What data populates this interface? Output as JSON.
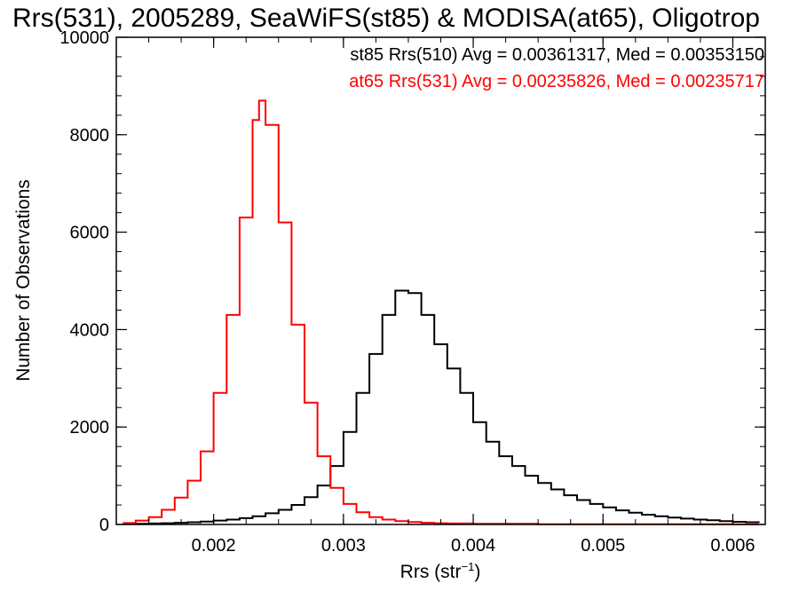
{
  "chart_data": {
    "type": "line",
    "step": true,
    "title": "Rrs(531), 2005289, SeaWiFS(st85) & MODISA(at65), Oligotrop",
    "xlabel": "Rrs (str",
    "xlabel_sup": "−1",
    "xlabel_end": ")",
    "ylabel": "Number of Observations",
    "xlim": [
      0.00125,
      0.00625
    ],
    "ylim": [
      0,
      10000
    ],
    "x_ticks": [
      0.002,
      0.003,
      0.004,
      0.005,
      0.006
    ],
    "x_tick_labels": [
      "0.002",
      "0.003",
      "0.004",
      "0.005",
      "0.006"
    ],
    "y_ticks": [
      0,
      2000,
      4000,
      6000,
      8000,
      10000
    ],
    "y_tick_labels": [
      "0",
      "2000",
      "4000",
      "6000",
      "8000",
      "10000"
    ],
    "grid": false,
    "legend_position": "top-right",
    "series": [
      {
        "name": "st85 Rrs(510) Avg = 0.00361317, Med = 0.00353150",
        "color": "#000000",
        "x": [
          0.0013,
          0.0014,
          0.0015,
          0.0016,
          0.0017,
          0.0018,
          0.0019,
          0.002,
          0.0021,
          0.0022,
          0.0023,
          0.0024,
          0.0025,
          0.0026,
          0.0027,
          0.0028,
          0.0029,
          0.003,
          0.0031,
          0.0032,
          0.0033,
          0.0034,
          0.0035,
          0.0036,
          0.0037,
          0.0038,
          0.0039,
          0.004,
          0.0041,
          0.0042,
          0.0043,
          0.0044,
          0.0045,
          0.0046,
          0.0047,
          0.0048,
          0.0049,
          0.005,
          0.0051,
          0.0052,
          0.0053,
          0.0054,
          0.0055,
          0.0056,
          0.0057,
          0.0058,
          0.0059,
          0.006,
          0.0061,
          0.0062
        ],
        "values": [
          10,
          15,
          20,
          25,
          35,
          45,
          60,
          80,
          100,
          130,
          170,
          230,
          300,
          400,
          560,
          800,
          1200,
          1900,
          2700,
          3500,
          4300,
          4800,
          4750,
          4300,
          3700,
          3200,
          2700,
          2100,
          1700,
          1400,
          1200,
          1000,
          850,
          720,
          600,
          500,
          420,
          350,
          290,
          240,
          200,
          170,
          140,
          120,
          100,
          85,
          70,
          55,
          45,
          35
        ]
      },
      {
        "name": "at65 Rrs(531) Avg = 0.00235826, Med = 0.00235717",
        "color": "#ff0000",
        "x": [
          0.0013,
          0.0014,
          0.0015,
          0.0016,
          0.0017,
          0.0018,
          0.0019,
          0.002,
          0.0021,
          0.0022,
          0.0023,
          0.00235,
          0.0024,
          0.0025,
          0.0026,
          0.0027,
          0.0028,
          0.0029,
          0.003,
          0.0031,
          0.0032,
          0.0033,
          0.0034,
          0.0035,
          0.0036,
          0.0037,
          0.0038,
          0.004,
          0.0045,
          0.005,
          0.0055,
          0.006,
          0.0062
        ],
        "values": [
          30,
          80,
          150,
          300,
          550,
          900,
          1500,
          2700,
          4300,
          6300,
          8300,
          8700,
          8200,
          6200,
          4100,
          2500,
          1400,
          750,
          420,
          250,
          150,
          100,
          70,
          50,
          35,
          25,
          20,
          12,
          6,
          4,
          3,
          2,
          2
        ]
      }
    ]
  }
}
